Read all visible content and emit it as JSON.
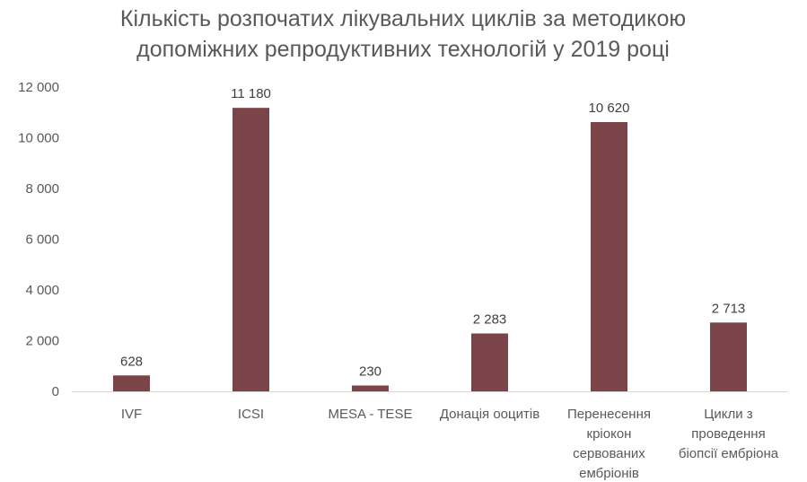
{
  "chart_data": {
    "type": "bar",
    "title_lines": [
      "Кількість розпочатих лікувальних циклів за методикою",
      "допоміжних репродуктивних технологій у 2019 році"
    ],
    "categories": [
      [
        "IVF"
      ],
      [
        "ICSI"
      ],
      [
        "MESA - TESE"
      ],
      [
        "Донація ооцитів"
      ],
      [
        "Перенесення",
        "кріокон",
        "сервованих",
        "ембріонів"
      ],
      [
        "Цикли з",
        "проведення",
        "біопсії ембріона"
      ]
    ],
    "values": [
      628,
      11180,
      230,
      2283,
      10620,
      2713
    ],
    "value_labels": [
      "628",
      "11 180",
      "230",
      "2 283",
      "10 620",
      "2 713"
    ],
    "y_ticks": [
      0,
      2000,
      4000,
      6000,
      8000,
      10000,
      12000
    ],
    "y_tick_labels": [
      "0",
      "2 000",
      "4 000",
      "6 000",
      "8 000",
      "10 000",
      "12 000"
    ],
    "ylim": [
      0,
      12000
    ],
    "bar_color": "#7b4448",
    "axis_color": "#d9d9d9",
    "grid": false,
    "legend": "none"
  }
}
